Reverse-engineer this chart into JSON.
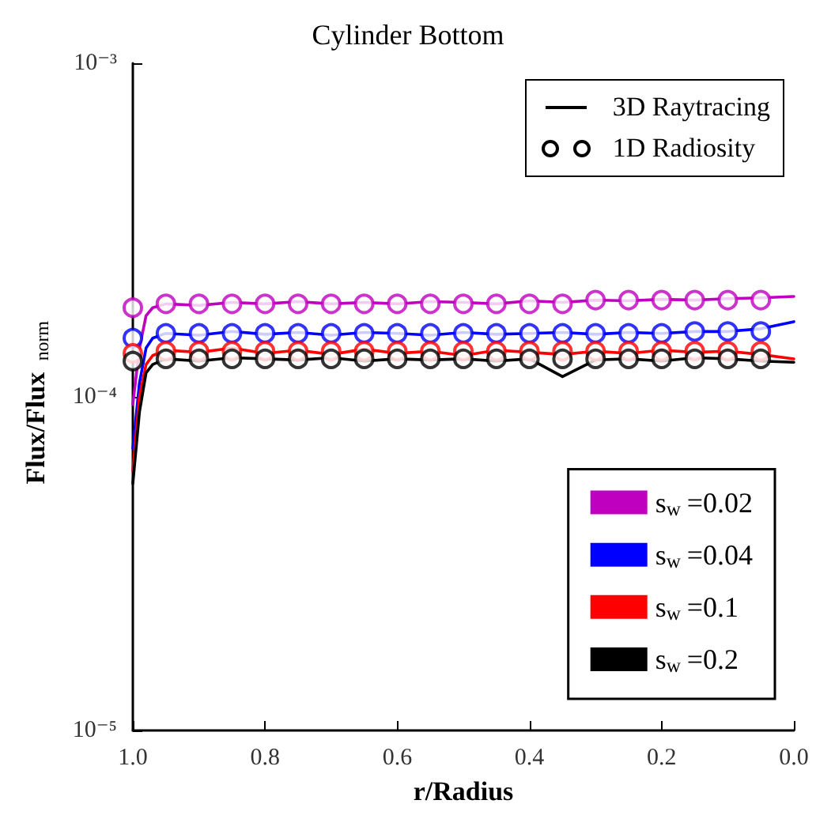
{
  "chart_data": {
    "type": "line",
    "title": "Cylinder Bottom",
    "xlabel": "r/Radius",
    "ylabel": "Flux/Flux$_{norm}$",
    "annotations": [
      "3D Raytracing",
      "1D Radiosity"
    ],
    "log": "y",
    "grid": false,
    "legend": "bottom right",
    "line_style": "solid",
    "xlim": [
      1.0,
      0.0
    ],
    "xticks": [
      {
        "value": 1.0,
        "label": "1.0"
      },
      {
        "value": 0.8,
        "label": "0.8"
      },
      {
        "value": 0.6,
        "label": "0.6"
      },
      {
        "value": 0.4,
        "label": "0.4"
      },
      {
        "value": 0.2,
        "label": "0.2"
      },
      {
        "value": 0.0,
        "label": "0.0"
      }
    ],
    "ylim": [
      1e-05,
      0.001
    ],
    "yticks": [
      {
        "value": 1e-05,
        "label": "10⁻⁵"
      },
      {
        "value": 0.0001,
        "label": "10⁻⁴"
      },
      {
        "value": 0.001,
        "label": "10⁻³"
      }
    ],
    "series": [
      {
        "name": "s$_{w}$=0.02",
        "type": "line",
        "color": "#bf00bf",
        "x": [
          1.0,
          0.99,
          0.98,
          0.97,
          0.95,
          0.9,
          0.85,
          0.8,
          0.75,
          0.7,
          0.65,
          0.6,
          0.55,
          0.5,
          0.45,
          0.4,
          0.35,
          0.3,
          0.25,
          0.2,
          0.15,
          0.1,
          0.05,
          0.0
        ],
        "values": [
          9.5e-05,
          0.00014,
          0.000175,
          0.000185,
          0.00019,
          0.000188,
          0.000192,
          0.00019,
          0.000193,
          0.00019,
          0.000192,
          0.00019,
          0.000193,
          0.000192,
          0.00019,
          0.000194,
          0.000192,
          0.000195,
          0.000194,
          0.000196,
          0.000195,
          0.000197,
          0.000198,
          0.0002
        ]
      },
      {
        "name": "s$_{w}$=0.04",
        "type": "line",
        "color": "#0000ff",
        "x": [
          1.0,
          0.99,
          0.98,
          0.97,
          0.95,
          0.9,
          0.85,
          0.8,
          0.75,
          0.7,
          0.65,
          0.6,
          0.55,
          0.5,
          0.45,
          0.4,
          0.35,
          0.3,
          0.25,
          0.2,
          0.15,
          0.1,
          0.05,
          0.0
        ],
        "values": [
          7e-05,
          0.00011,
          0.00014,
          0.00015,
          0.000155,
          0.000153,
          0.000157,
          0.000154,
          0.000156,
          0.000153,
          0.000156,
          0.000155,
          0.000153,
          0.000156,
          0.000154,
          0.000155,
          0.000156,
          0.000154,
          0.000156,
          0.000155,
          0.000157,
          0.000157,
          0.00016,
          0.000168
        ]
      },
      {
        "name": "s$_{w}$=0.1",
        "type": "line",
        "color": "#ff0000",
        "x": [
          1.0,
          0.99,
          0.98,
          0.97,
          0.95,
          0.9,
          0.85,
          0.8,
          0.75,
          0.7,
          0.65,
          0.6,
          0.55,
          0.5,
          0.45,
          0.4,
          0.35,
          0.3,
          0.25,
          0.2,
          0.15,
          0.1,
          0.05,
          0.0
        ],
        "values": [
          6e-05,
          0.0001,
          0.000125,
          0.000133,
          0.000138,
          0.000136,
          0.00014,
          0.000135,
          0.000138,
          0.000134,
          0.000139,
          0.000135,
          0.000137,
          0.000133,
          0.000138,
          0.000136,
          0.000134,
          0.000137,
          0.000135,
          0.000138,
          0.000136,
          0.000137,
          0.000134,
          0.00013
        ]
      },
      {
        "name": "s$_{w}$=0.2",
        "type": "line",
        "color": "#000000",
        "x": [
          1.0,
          0.99,
          0.98,
          0.97,
          0.95,
          0.9,
          0.85,
          0.8,
          0.75,
          0.7,
          0.65,
          0.6,
          0.55,
          0.5,
          0.45,
          0.4,
          0.35,
          0.3,
          0.25,
          0.2,
          0.15,
          0.1,
          0.05,
          0.0
        ],
        "values": [
          5.5e-05,
          9e-05,
          0.000118,
          0.000125,
          0.00013,
          0.000128,
          0.000131,
          0.00013,
          0.000129,
          0.000131,
          0.000128,
          0.00013,
          0.000129,
          0.00013,
          0.000128,
          0.00013,
          0.000115,
          0.000129,
          0.00013,
          0.000128,
          0.000131,
          0.00013,
          0.000128,
          0.000127
        ]
      },
      {
        "type": "scatter",
        "marker": "circle",
        "color": "#bf00bf",
        "x": [
          1.0,
          0.95,
          0.9,
          0.85,
          0.8,
          0.75,
          0.7,
          0.65,
          0.6,
          0.55,
          0.5,
          0.45,
          0.4,
          0.35,
          0.3,
          0.25,
          0.2,
          0.15,
          0.1,
          0.05
        ],
        "values": [
          0.000185,
          0.00019,
          0.00019,
          0.00019,
          0.00019,
          0.00019,
          0.00019,
          0.00019,
          0.00019,
          0.00019,
          0.00019,
          0.00019,
          0.00019,
          0.00019,
          0.000195,
          0.000195,
          0.000195,
          0.000195,
          0.000195,
          0.000195
        ]
      },
      {
        "type": "scatter",
        "marker": "circle",
        "color": "#0000ff",
        "x": [
          1.0,
          0.95,
          0.9,
          0.85,
          0.8,
          0.75,
          0.7,
          0.65,
          0.6,
          0.55,
          0.5,
          0.45,
          0.4,
          0.35,
          0.3,
          0.25,
          0.2,
          0.15,
          0.1,
          0.05
        ],
        "values": [
          0.00015,
          0.000155,
          0.000155,
          0.000155,
          0.000155,
          0.000155,
          0.000155,
          0.000155,
          0.000155,
          0.000155,
          0.000155,
          0.000155,
          0.000155,
          0.000155,
          0.000155,
          0.000155,
          0.000155,
          0.000157,
          0.000157,
          0.000157
        ]
      },
      {
        "type": "scatter",
        "marker": "circle",
        "color": "#ff0000",
        "x": [
          1.0,
          0.95,
          0.9,
          0.85,
          0.8,
          0.75,
          0.7,
          0.65,
          0.6,
          0.55,
          0.5,
          0.45,
          0.4,
          0.35,
          0.3,
          0.25,
          0.2,
          0.15,
          0.1,
          0.05
        ],
        "values": [
          0.000135,
          0.000137,
          0.000137,
          0.000137,
          0.000137,
          0.000137,
          0.000137,
          0.000137,
          0.000137,
          0.000137,
          0.000137,
          0.000137,
          0.000137,
          0.000137,
          0.000137,
          0.000137,
          0.000137,
          0.000137,
          0.000137,
          0.000137
        ]
      },
      {
        "type": "scatter",
        "marker": "circle",
        "color": "#000000",
        "x": [
          1.0,
          0.95,
          0.9,
          0.85,
          0.8,
          0.75,
          0.7,
          0.65,
          0.6,
          0.55,
          0.5,
          0.45,
          0.4,
          0.35,
          0.3,
          0.25,
          0.2,
          0.15,
          0.1,
          0.05
        ],
        "values": [
          0.000128,
          0.00013,
          0.00013,
          0.00013,
          0.00013,
          0.00013,
          0.00013,
          0.00013,
          0.00013,
          0.00013,
          0.00013,
          0.00013,
          0.00013,
          0.00013,
          0.00013,
          0.00013,
          0.00013,
          0.00013,
          0.00013,
          0.00013
        ]
      }
    ]
  }
}
